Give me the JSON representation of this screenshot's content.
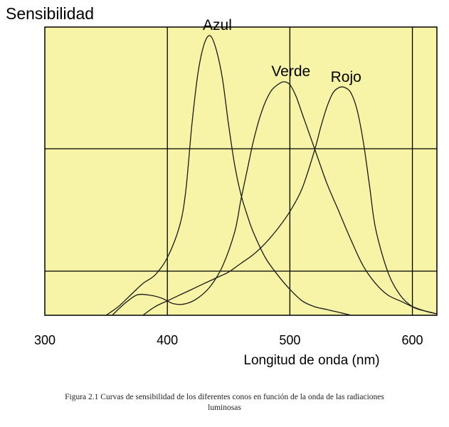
{
  "chart_data": {
    "type": "line",
    "ylabel": "Sensibilidad",
    "xlabel": "Longitud de onda (nm)",
    "xlim": [
      300,
      620
    ],
    "ylim": [
      0,
      1
    ],
    "x_ticks": [
      300,
      400,
      500,
      600
    ],
    "grid": true,
    "background_color": "#f7f4a8",
    "series": [
      {
        "name": "Azul",
        "x": [
          350,
          360,
          370,
          380,
          390,
          400,
          410,
          415,
          420,
          425,
          430,
          435,
          440,
          445,
          450,
          455,
          460,
          465,
          470,
          480,
          490,
          500,
          510,
          520,
          530,
          540,
          550
        ],
        "y": [
          0.0,
          0.03,
          0.07,
          0.11,
          0.14,
          0.2,
          0.31,
          0.43,
          0.66,
          0.84,
          0.94,
          0.97,
          0.92,
          0.82,
          0.66,
          0.52,
          0.42,
          0.35,
          0.29,
          0.2,
          0.14,
          0.09,
          0.05,
          0.03,
          0.02,
          0.01,
          0.0
        ]
      },
      {
        "name": "Verde",
        "x": [
          355,
          365,
          375,
          385,
          395,
          405,
          415,
          425,
          435,
          445,
          455,
          460,
          465,
          470,
          475,
          480,
          485,
          490,
          495,
          500,
          505,
          510,
          520,
          530,
          540,
          550,
          560,
          570,
          580,
          590,
          600,
          610,
          620
        ],
        "y": [
          0.0,
          0.04,
          0.07,
          0.07,
          0.06,
          0.04,
          0.04,
          0.06,
          0.1,
          0.17,
          0.29,
          0.4,
          0.5,
          0.6,
          0.68,
          0.74,
          0.78,
          0.8,
          0.81,
          0.8,
          0.76,
          0.7,
          0.58,
          0.46,
          0.36,
          0.26,
          0.17,
          0.11,
          0.07,
          0.05,
          0.03,
          0.015,
          0.005
        ]
      },
      {
        "name": "Rojo",
        "x": [
          380,
          390,
          400,
          410,
          420,
          430,
          440,
          450,
          460,
          470,
          480,
          490,
          500,
          510,
          520,
          525,
          530,
          535,
          540,
          545,
          550,
          555,
          560,
          565,
          570,
          580,
          590,
          600,
          610,
          620
        ],
        "y": [
          0.0,
          0.03,
          0.05,
          0.07,
          0.09,
          0.11,
          0.13,
          0.15,
          0.18,
          0.21,
          0.25,
          0.3,
          0.36,
          0.44,
          0.57,
          0.65,
          0.72,
          0.77,
          0.79,
          0.79,
          0.77,
          0.71,
          0.6,
          0.45,
          0.3,
          0.15,
          0.07,
          0.03,
          0.015,
          0.005
        ]
      }
    ]
  },
  "caption": {
    "line1": "Figura 2.1 Curvas de sensibilidad de los diferentes conos en función de la onda de las radiaciones",
    "line2": "luminosas"
  }
}
